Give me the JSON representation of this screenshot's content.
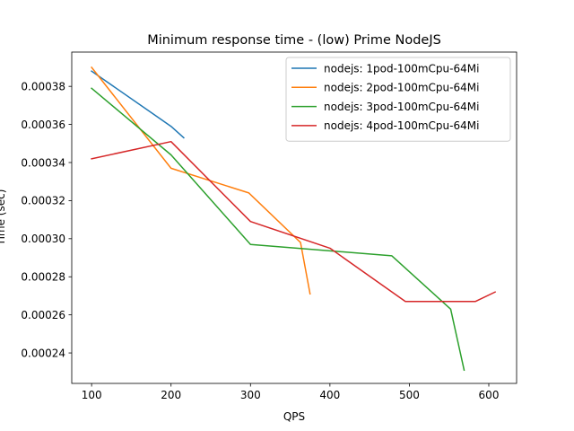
{
  "chart_data": {
    "type": "line",
    "title": "Minimum response time - (low) Prime NodeJS",
    "xlabel": "QPS",
    "ylabel": "Time (sec)",
    "xlim": [
      75,
      635
    ],
    "ylim": [
      0.000224,
      0.000398
    ],
    "xticks": [
      100,
      200,
      300,
      400,
      500,
      600
    ],
    "yticks": [
      0.00024,
      0.00026,
      0.00028,
      0.0003,
      0.00032,
      0.00034,
      0.00036,
      0.00038
    ],
    "ytick_labels": [
      "0.00024",
      "0.00026",
      "0.00028",
      "0.00030",
      "0.00032",
      "0.00034",
      "0.00036",
      "0.00038"
    ],
    "grid": false,
    "legend_position": "top-right",
    "series": [
      {
        "name": "nodejs: 1pod-100mCpu-64Mi",
        "color": "#1f77b4",
        "x": [
          100,
          200,
          216
        ],
        "y": [
          0.000388,
          0.000359,
          0.000353
        ]
      },
      {
        "name": "nodejs: 2pod-100mCpu-64Mi",
        "color": "#ff7f0e",
        "x": [
          100,
          200,
          298,
          363,
          375
        ],
        "y": [
          0.00039,
          0.000337,
          0.000324,
          0.000298,
          0.000271
        ]
      },
      {
        "name": "nodejs: 3pod-100mCpu-64Mi",
        "color": "#2ca02c",
        "x": [
          100,
          200,
          300,
          478,
          552,
          569
        ],
        "y": [
          0.000379,
          0.000344,
          0.000297,
          0.000291,
          0.000263,
          0.000231
        ]
      },
      {
        "name": "nodejs: 4pod-100mCpu-64Mi",
        "color": "#d62728",
        "x": [
          100,
          200,
          300,
          400,
          495,
          583,
          608
        ],
        "y": [
          0.000342,
          0.000351,
          0.000309,
          0.000295,
          0.000267,
          0.000267,
          0.000272
        ]
      }
    ]
  }
}
